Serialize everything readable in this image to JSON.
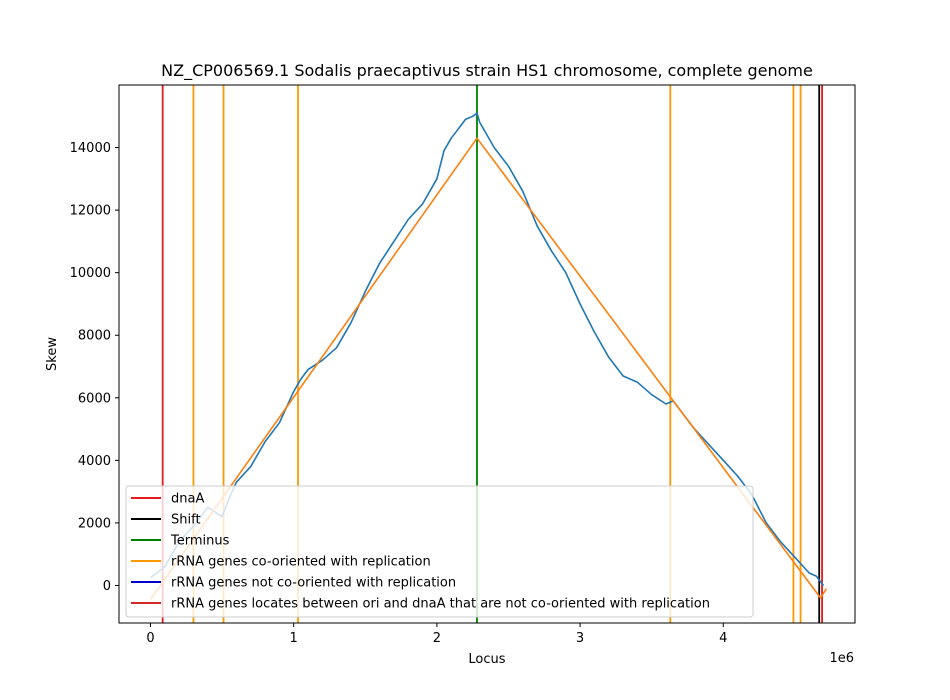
{
  "chart_data": {
    "type": "line",
    "title": "NZ_CP006569.1 Sodalis praecaptivus strain HS1 chromosome, complete genome",
    "xlabel": "Locus",
    "ylabel": "Skew",
    "x_offset_label": "1e6",
    "xlim": [
      -220000,
      4920000
    ],
    "ylim": [
      -1200,
      16000
    ],
    "x_ticks": [
      0,
      1000000,
      2000000,
      3000000,
      4000000
    ],
    "x_tick_labels": [
      "0",
      "1",
      "2",
      "3",
      "4"
    ],
    "y_ticks": [
      0,
      2000,
      4000,
      6000,
      8000,
      10000,
      12000,
      14000
    ],
    "y_tick_labels": [
      "0",
      "2000",
      "4000",
      "6000",
      "8000",
      "10000",
      "12000",
      "14000"
    ],
    "grid": false,
    "legend_position": "lower-left",
    "series": [
      {
        "type": "skew",
        "color": "#1f77b4",
        "x": [
          0,
          100000,
          200000,
          300000,
          400000,
          500000,
          550000,
          600000,
          700000,
          800000,
          900000,
          1000000,
          1050000,
          1100000,
          1200000,
          1300000,
          1400000,
          1500000,
          1600000,
          1700000,
          1800000,
          1900000,
          2000000,
          2050000,
          2100000,
          2150000,
          2200000,
          2250000,
          2280000,
          2300000,
          2350000,
          2400000,
          2500000,
          2600000,
          2700000,
          2800000,
          2900000,
          3000000,
          3100000,
          3200000,
          3300000,
          3400000,
          3500000,
          3600000,
          3650000,
          3700000,
          3800000,
          3900000,
          4000000,
          4100000,
          4200000,
          4300000,
          4400000,
          4500000,
          4600000,
          4650000,
          4700000
        ],
        "y": [
          250,
          600,
          1400,
          1900,
          2500,
          2200,
          2800,
          3300,
          3800,
          4600,
          5200,
          6200,
          6600,
          6900,
          7200,
          7600,
          8400,
          9400,
          10300,
          11000,
          11700,
          12200,
          13000,
          13900,
          14300,
          14600,
          14900,
          15000,
          15100,
          14800,
          14400,
          14000,
          13400,
          12600,
          11500,
          10700,
          10000,
          9000,
          8100,
          7300,
          6700,
          6500,
          6100,
          5800,
          5900,
          5600,
          5000,
          4500,
          4000,
          3500,
          2900,
          2000,
          1400,
          900,
          400,
          300,
          0
        ]
      },
      {
        "type": "fit",
        "color": "#ff7f0e",
        "x": [
          0,
          2280000,
          4680000,
          4720000
        ],
        "y": [
          -450,
          14300,
          -400,
          -100
        ]
      }
    ],
    "vlines": [
      {
        "x": 85000,
        "color": "#e41a1c",
        "kind": "dnaA"
      },
      {
        "x": 300000,
        "color": "#ff9900",
        "kind": "rRNA co-oriented"
      },
      {
        "x": 510000,
        "color": "#ff9900",
        "kind": "rRNA co-oriented"
      },
      {
        "x": 1030000,
        "color": "#ff9900",
        "kind": "rRNA co-oriented"
      },
      {
        "x": 2280000,
        "color": "#008000",
        "kind": "Terminus"
      },
      {
        "x": 3630000,
        "color": "#ff9900",
        "kind": "rRNA co-oriented"
      },
      {
        "x": 4490000,
        "color": "#ff9900",
        "kind": "rRNA co-oriented"
      },
      {
        "x": 4540000,
        "color": "#ff9900",
        "kind": "rRNA co-oriented"
      },
      {
        "x": 4670000,
        "color": "#000000",
        "kind": "Shift"
      },
      {
        "x": 4690000,
        "color": "#e41a1c",
        "kind": "dnaA"
      }
    ],
    "legend": [
      {
        "label": "dnaA",
        "color": "#e41a1c"
      },
      {
        "label": "Shift",
        "color": "#000000"
      },
      {
        "label": "Terminus",
        "color": "#008000"
      },
      {
        "label": "rRNA genes co-oriented with replication",
        "color": "#ff9900"
      },
      {
        "label": "rRNA genes not co-oriented with replication",
        "color": "#0000cc"
      },
      {
        "label": "rRNA genes locates between ori and dnaA that are not co-oriented with replication",
        "color": "#d62728"
      }
    ]
  }
}
